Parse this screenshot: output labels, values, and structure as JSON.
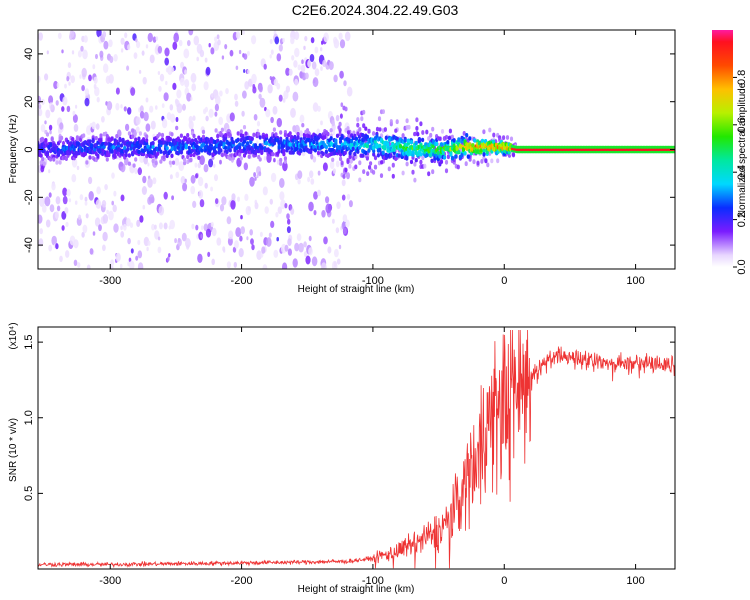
{
  "title": "C2E6.2024.304.22.49.G03",
  "chart_data": [
    {
      "type": "heatmap",
      "xlabel": "Height of straight line (km)",
      "ylabel": "Frequency (Hz)",
      "xlim": [
        -355,
        130
      ],
      "ylim": [
        -50,
        50
      ],
      "x_ticks": [
        "-300",
        "-200",
        "-100",
        "0",
        "100"
      ],
      "x_tick_values": [
        -300,
        -200,
        -100,
        0,
        100
      ],
      "y_ticks": [
        "40",
        "20",
        "0",
        "-20",
        "-40"
      ],
      "y_tick_values": [
        40,
        20,
        0,
        -20,
        -40
      ],
      "colorbar": {
        "label": "Normalized spectral amplitude",
        "ticks": [
          "0.0",
          "0.2",
          "0.4",
          "0.6",
          "0.8"
        ],
        "tick_values": [
          0.0,
          0.2,
          0.4,
          0.6,
          0.8
        ],
        "range": [
          0,
          1
        ]
      },
      "ridge": {
        "x": [
          -355,
          -300,
          -250,
          -200,
          -150,
          -120,
          -100,
          -80,
          -60,
          -40,
          -30,
          -20,
          -10,
          0,
          10,
          130
        ],
        "y": [
          0,
          1,
          1,
          2,
          2,
          2,
          2,
          1,
          0,
          0,
          1,
          1,
          1,
          1,
          0,
          0
        ],
        "amplitude": [
          0.25,
          0.28,
          0.3,
          0.3,
          0.32,
          0.35,
          0.45,
          0.5,
          0.55,
          0.6,
          0.8,
          0.85,
          0.85,
          0.85,
          0.95,
          0.95
        ]
      }
    },
    {
      "type": "line",
      "xlabel": "Height of straight line (km)",
      "ylabel": "SNR (10 * v/v)",
      "y_multiplier": "(x10⁴)",
      "xlim": [
        -355,
        130
      ],
      "ylim": [
        0,
        1.6
      ],
      "x_ticks": [
        "-300",
        "-200",
        "-100",
        "0",
        "100"
      ],
      "x_tick_values": [
        -300,
        -200,
        -100,
        0,
        100
      ],
      "y_ticks": [
        "1.5",
        "1.0",
        "0.5"
      ],
      "y_tick_values": [
        1.5,
        1.0,
        0.5
      ],
      "color": "#ee3333",
      "trend": {
        "x": [
          -355,
          -300,
          -200,
          -120,
          -100,
          -80,
          -60,
          -50,
          -40,
          -30,
          -20,
          -10,
          0,
          10,
          20,
          30,
          40,
          60,
          80,
          100,
          130
        ],
        "y": [
          0.03,
          0.03,
          0.04,
          0.05,
          0.07,
          0.12,
          0.2,
          0.25,
          0.35,
          0.55,
          0.8,
          1.0,
          1.1,
          1.2,
          1.3,
          1.4,
          1.45,
          1.43,
          1.4,
          1.4,
          1.4
        ]
      }
    }
  ]
}
